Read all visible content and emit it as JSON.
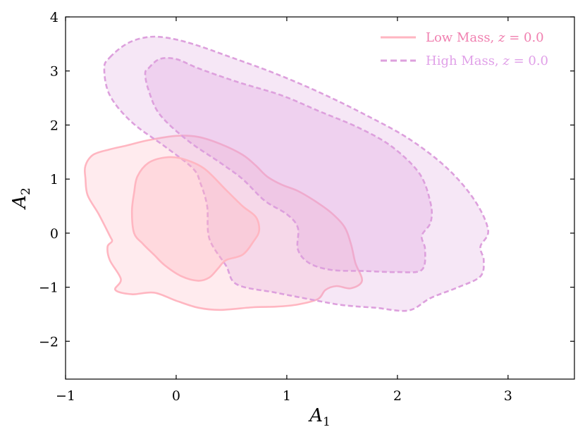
{
  "chart_data": {
    "type": "contour",
    "xlim": [
      -1,
      3.6
    ],
    "ylim": [
      -2.7,
      4
    ],
    "xticks": [
      -1,
      0,
      1,
      2,
      3
    ],
    "yticks": [
      -2,
      -1,
      0,
      1,
      2,
      3,
      4
    ],
    "xtick_labels": [
      "−1",
      "0",
      "1",
      "2",
      "3"
    ],
    "ytick_labels": [
      "−2",
      "−1",
      "0",
      "1",
      "2",
      "3",
      "4"
    ],
    "xlabel": "A",
    "xlabel_sub": "1",
    "ylabel": "A",
    "ylabel_sub": "2",
    "grid": false,
    "legend_position": "top-right",
    "series": [
      {
        "name": "Low Mass, z = 0.0",
        "name_parts": {
          "text": "Low Mass, ",
          "var": "z",
          "eq": " = 0.0"
        },
        "color": "#ffb6c1",
        "label_color": "#f080b0",
        "linestyle": "solid",
        "contours": [
          {
            "level": "outer",
            "fill_opacity": 0.28,
            "points": [
              [
                -0.82,
                1.25
              ],
              [
                -0.75,
                1.45
              ],
              [
                -0.6,
                1.55
              ],
              [
                -0.45,
                1.62
              ],
              [
                -0.25,
                1.72
              ],
              [
                0,
                1.8
              ],
              [
                0.2,
                1.78
              ],
              [
                0.4,
                1.65
              ],
              [
                0.6,
                1.45
              ],
              [
                0.72,
                1.25
              ],
              [
                0.82,
                1.05
              ],
              [
                0.95,
                0.9
              ],
              [
                1.1,
                0.78
              ],
              [
                1.25,
                0.6
              ],
              [
                1.4,
                0.38
              ],
              [
                1.52,
                0.12
              ],
              [
                1.58,
                -0.2
              ],
              [
                1.62,
                -0.55
              ],
              [
                1.68,
                -0.88
              ],
              [
                1.58,
                -1.02
              ],
              [
                1.45,
                -0.98
              ],
              [
                1.35,
                -1.05
              ],
              [
                1.28,
                -1.22
              ],
              [
                1.1,
                -1.32
              ],
              [
                0.9,
                -1.36
              ],
              [
                0.7,
                -1.37
              ],
              [
                0.4,
                -1.42
              ],
              [
                0.2,
                -1.38
              ],
              [
                0,
                -1.25
              ],
              [
                -0.2,
                -1.1
              ],
              [
                -0.4,
                -1.13
              ],
              [
                -0.55,
                -1.05
              ],
              [
                -0.5,
                -0.85
              ],
              [
                -0.6,
                -0.5
              ],
              [
                -0.62,
                -0.25
              ],
              [
                -0.58,
                -0.15
              ],
              [
                -0.6,
                -0.05
              ],
              [
                -0.7,
                0.35
              ],
              [
                -0.8,
                0.7
              ],
              [
                -0.82,
                1.0
              ]
            ]
          },
          {
            "level": "inner",
            "fill_opacity": 0.35,
            "points": [
              [
                -0.35,
                1.05
              ],
              [
                -0.25,
                1.3
              ],
              [
                -0.1,
                1.4
              ],
              [
                0.05,
                1.38
              ],
              [
                0.25,
                1.2
              ],
              [
                0.45,
                0.8
              ],
              [
                0.6,
                0.5
              ],
              [
                0.72,
                0.3
              ],
              [
                0.75,
                0.05
              ],
              [
                0.7,
                -0.15
              ],
              [
                0.6,
                -0.4
              ],
              [
                0.45,
                -0.5
              ],
              [
                0.38,
                -0.65
              ],
              [
                0.3,
                -0.82
              ],
              [
                0.2,
                -0.88
              ],
              [
                0.05,
                -0.8
              ],
              [
                -0.1,
                -0.6
              ],
              [
                -0.2,
                -0.4
              ],
              [
                -0.3,
                -0.2
              ],
              [
                -0.38,
                0.0
              ],
              [
                -0.4,
                0.4
              ],
              [
                -0.38,
                0.75
              ]
            ]
          }
        ]
      },
      {
        "name": "High Mass, z = 0.0",
        "name_parts": {
          "text": "High Mass, ",
          "var": "z",
          "eq": " = 0.0"
        },
        "color": "#dda0dd",
        "label_color": "#e0a0e8",
        "linestyle": "dashed",
        "contours": [
          {
            "level": "outer",
            "fill_opacity": 0.25,
            "points": [
              [
                -0.6,
                3.25
              ],
              [
                -0.45,
                3.5
              ],
              [
                -0.28,
                3.62
              ],
              [
                -0.1,
                3.62
              ],
              [
                0.15,
                3.5
              ],
              [
                0.5,
                3.25
              ],
              [
                0.9,
                2.95
              ],
              [
                1.3,
                2.6
              ],
              [
                1.7,
                2.2
              ],
              [
                2.1,
                1.75
              ],
              [
                2.45,
                1.2
              ],
              [
                2.7,
                0.6
              ],
              [
                2.82,
                0.05
              ],
              [
                2.75,
                -0.25
              ],
              [
                2.78,
                -0.5
              ],
              [
                2.75,
                -0.8
              ],
              [
                2.55,
                -1.0
              ],
              [
                2.3,
                -1.2
              ],
              [
                2.1,
                -1.43
              ],
              [
                1.8,
                -1.38
              ],
              [
                1.5,
                -1.33
              ],
              [
                1.2,
                -1.22
              ],
              [
                0.9,
                -1.1
              ],
              [
                0.55,
                -0.95
              ],
              [
                0.45,
                -0.6
              ],
              [
                0.3,
                -0.1
              ],
              [
                0.28,
                0.5
              ],
              [
                0.22,
                0.92
              ],
              [
                0.15,
                1.2
              ],
              [
                -0.1,
                1.6
              ],
              [
                -0.4,
                2.05
              ],
              [
                -0.6,
                2.55
              ],
              [
                -0.65,
                3.05
              ]
            ]
          },
          {
            "level": "inner",
            "fill_opacity": 0.3,
            "points": [
              [
                -0.25,
                3.05
              ],
              [
                -0.15,
                3.22
              ],
              [
                0,
                3.22
              ],
              [
                0.2,
                3.05
              ],
              [
                0.55,
                2.8
              ],
              [
                0.95,
                2.55
              ],
              [
                1.3,
                2.25
              ],
              [
                1.65,
                1.95
              ],
              [
                1.95,
                1.6
              ],
              [
                2.2,
                1.1
              ],
              [
                2.3,
                0.55
              ],
              [
                2.3,
                0.2
              ],
              [
                2.22,
                -0.05
              ],
              [
                2.25,
                -0.3
              ],
              [
                2.22,
                -0.68
              ],
              [
                2.0,
                -0.72
              ],
              [
                1.7,
                -0.7
              ],
              [
                1.4,
                -0.68
              ],
              [
                1.2,
                -0.55
              ],
              [
                1.1,
                -0.3
              ],
              [
                1.1,
                0.1
              ],
              [
                1.0,
                0.35
              ],
              [
                0.8,
                0.6
              ],
              [
                0.6,
                1.0
              ],
              [
                0.4,
                1.3
              ],
              [
                0.1,
                1.72
              ],
              [
                -0.15,
                2.2
              ],
              [
                -0.25,
                2.65
              ],
              [
                -0.28,
                2.95
              ]
            ]
          }
        ]
      }
    ]
  }
}
